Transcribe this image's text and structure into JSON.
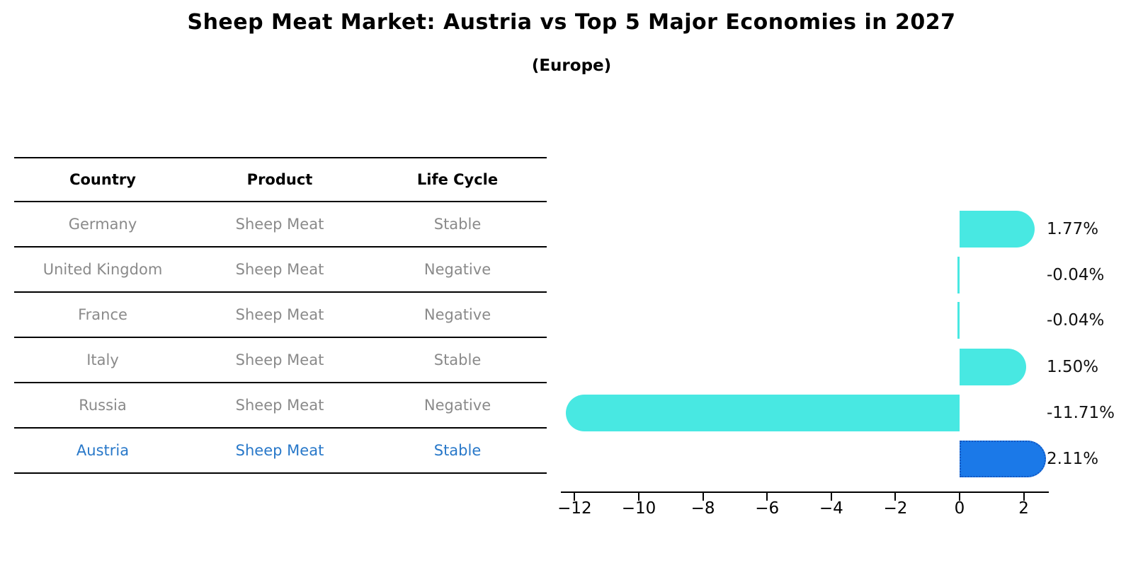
{
  "title": "Sheep Meat Market: Austria vs Top 5 Major Economies in 2027",
  "subtitle": "(Europe)",
  "colors": {
    "bar_cyan": "#48e8e2",
    "bar_blue": "#1b79e8",
    "bar_blue_border": "#1356c0",
    "highlight_text": "#2878c9",
    "row_text": "#8a8a8a",
    "header_text": "#000000"
  },
  "table": {
    "headers": [
      "Country",
      "Product",
      "Life Cycle"
    ],
    "rows": [
      {
        "country": "Germany",
        "product": "Sheep Meat",
        "life_cycle": "Stable",
        "highlight": false
      },
      {
        "country": "United Kingdom",
        "product": "Sheep Meat",
        "life_cycle": "Negative",
        "highlight": false
      },
      {
        "country": "France",
        "product": "Sheep Meat",
        "life_cycle": "Negative",
        "highlight": false
      },
      {
        "country": "Italy",
        "product": "Sheep Meat",
        "life_cycle": "Stable",
        "highlight": false
      },
      {
        "country": "Russia",
        "product": "Sheep Meat",
        "life_cycle": "Negative",
        "highlight": false
      },
      {
        "country": "Austria",
        "product": "Sheep Meat",
        "life_cycle": "Stable",
        "highlight": true
      }
    ]
  },
  "chart_data": {
    "type": "bar",
    "orientation": "horizontal",
    "title": "Sheep Meat Market: Austria vs Top 5 Major Economies in 2027",
    "subtitle": "(Europe)",
    "categories": [
      "Germany",
      "United Kingdom",
      "France",
      "Italy",
      "Russia",
      "Austria"
    ],
    "values": [
      1.77,
      -0.04,
      -0.04,
      1.5,
      -11.71,
      2.11
    ],
    "value_labels": [
      "1.77%",
      "-0.04%",
      "-0.04%",
      "1.50%",
      "-11.71%",
      "2.11%"
    ],
    "bar_colors": [
      "#48e8e2",
      "#48e8e2",
      "#48e8e2",
      "#48e8e2",
      "#48e8e2",
      "#1b79e8"
    ],
    "highlight_index": 5,
    "x_ticks": [
      -12,
      -10,
      -8,
      -6,
      -4,
      -2,
      0,
      2
    ],
    "x_tick_labels": [
      "−12",
      "−10",
      "−8",
      "−6",
      "−4",
      "−2",
      "0",
      "2"
    ],
    "xlim": [
      -12.4,
      2.8
    ],
    "xlabel": "",
    "ylabel": "",
    "grid": false,
    "legend": null
  }
}
